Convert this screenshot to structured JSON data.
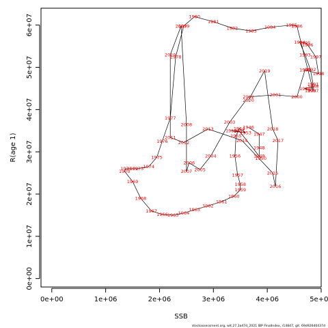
{
  "chart_data": {
    "type": "scatter",
    "connected": true,
    "xlabel": "SSB",
    "ylabel": "R(age 1)",
    "xlim": [
      -200000,
      5000000
    ],
    "ylim": [
      -2000000,
      64000000
    ],
    "x_ticks": [
      0,
      1000000,
      2000000,
      3000000,
      4000000,
      5000000
    ],
    "x_tick_labels": [
      "0e+00",
      "1e+06",
      "2e+06",
      "3e+06",
      "4e+06",
      "5e+06"
    ],
    "y_ticks": [
      0,
      10000000,
      20000000,
      30000000,
      40000000,
      50000000,
      60000000
    ],
    "y_tick_labels": [
      "0e+00",
      "1e+07",
      "2e+07",
      "3e+07",
      "4e+07",
      "5e+07",
      "6e+07"
    ],
    "label_color": "#ff0000",
    "line_color": "#000000",
    "grid": false,
    "points": [
      {
        "year": "1946",
        "x": 3650000,
        "y": 35800000
      },
      {
        "year": "1947",
        "x": 3850000,
        "y": 34200000
      },
      {
        "year": "1948",
        "x": 3850000,
        "y": 31000000
      },
      {
        "year": "1949",
        "x": 3850000,
        "y": 29000000
      },
      {
        "year": "1950",
        "x": 3880000,
        "y": 28500000
      },
      {
        "year": "1951",
        "x": 3480000,
        "y": 34900000
      },
      {
        "year": "1952",
        "x": 3330000,
        "y": 35000000
      },
      {
        "year": "1953",
        "x": 3600000,
        "y": 34500000
      },
      {
        "year": "1954",
        "x": 3480000,
        "y": 35500000
      },
      {
        "year": "1955",
        "x": 3420000,
        "y": 33800000
      },
      {
        "year": "1956",
        "x": 3400000,
        "y": 29000000
      },
      {
        "year": "1957",
        "x": 3450000,
        "y": 24500000
      },
      {
        "year": "1958",
        "x": 3500000,
        "y": 22300000
      },
      {
        "year": "1959",
        "x": 3500000,
        "y": 21000000
      },
      {
        "year": "1960",
        "x": 3380000,
        "y": 19500000
      },
      {
        "year": "1961",
        "x": 3150000,
        "y": 18200000
      },
      {
        "year": "1962",
        "x": 2900000,
        "y": 17200000
      },
      {
        "year": "1963",
        "x": 2650000,
        "y": 16300000
      },
      {
        "year": "1964",
        "x": 2450000,
        "y": 15500000
      },
      {
        "year": "1965",
        "x": 2250000,
        "y": 15000000
      },
      {
        "year": "1966",
        "x": 2050000,
        "y": 15200000
      },
      {
        "year": "1967",
        "x": 1850000,
        "y": 16000000
      },
      {
        "year": "1968",
        "x": 1650000,
        "y": 19000000
      },
      {
        "year": "1969",
        "x": 1500000,
        "y": 23000000
      },
      {
        "year": "1970",
        "x": 1350000,
        "y": 25400000
      },
      {
        "year": "1971",
        "x": 1380000,
        "y": 26000000
      },
      {
        "year": "1972",
        "x": 1500000,
        "y": 26000000
      },
      {
        "year": "1973",
        "x": 1600000,
        "y": 26000000
      },
      {
        "year": "1974",
        "x": 1800000,
        "y": 26500000
      },
      {
        "year": "1975",
        "x": 1950000,
        "y": 28700000
      },
      {
        "year": "1976",
        "x": 2050000,
        "y": 32500000
      },
      {
        "year": "1977",
        "x": 2200000,
        "y": 38000000
      },
      {
        "year": "1978",
        "x": 2300000,
        "y": 52500000
      },
      {
        "year": "1979",
        "x": 2450000,
        "y": 59800000
      },
      {
        "year": "1980",
        "x": 2650000,
        "y": 62000000
      },
      {
        "year": "1981",
        "x": 3000000,
        "y": 60800000
      },
      {
        "year": "1982",
        "x": 3350000,
        "y": 59300000
      },
      {
        "year": "1983",
        "x": 3700000,
        "y": 58600000
      },
      {
        "year": "1984",
        "x": 4050000,
        "y": 59500000
      },
      {
        "year": "1985",
        "x": 4450000,
        "y": 60000000
      },
      {
        "year": "1986",
        "x": 4550000,
        "y": 59800000
      },
      {
        "year": "1987",
        "x": 4850000,
        "y": 44500000
      },
      {
        "year": "1988",
        "x": 4850000,
        "y": 45500000
      },
      {
        "year": "1989",
        "x": 4700000,
        "y": 45000000
      },
      {
        "year": "1990",
        "x": 4800000,
        "y": 44500000
      },
      {
        "year": "1991",
        "x": 4850000,
        "y": 46000000
      },
      {
        "year": "1992",
        "x": 4800000,
        "y": 49500000
      },
      {
        "year": "1993",
        "x": 4700000,
        "y": 53000000
      },
      {
        "year": "1994",
        "x": 4600000,
        "y": 56000000
      },
      {
        "year": "1995",
        "x": 4700000,
        "y": 55800000
      },
      {
        "year": "1996",
        "x": 4750000,
        "y": 55300000
      },
      {
        "year": "1997",
        "x": 4900000,
        "y": 52500000
      },
      {
        "year": "1998",
        "x": 4950000,
        "y": 48500000
      },
      {
        "year": "1999",
        "x": 4700000,
        "y": 49400000
      },
      {
        "year": "2000",
        "x": 4550000,
        "y": 43000000
      },
      {
        "year": "2001",
        "x": 4150000,
        "y": 43500000
      },
      {
        "year": "2002",
        "x": 3650000,
        "y": 43000000
      },
      {
        "year": "2003",
        "x": 3300000,
        "y": 37000000
      },
      {
        "year": "2004",
        "x": 2950000,
        "y": 29000000
      },
      {
        "year": "2005",
        "x": 2750000,
        "y": 25800000
      },
      {
        "year": "2006",
        "x": 2550000,
        "y": 27400000
      },
      {
        "year": "2007",
        "x": 2500000,
        "y": 25400000
      },
      {
        "year": "2008",
        "x": 2500000,
        "y": 36500000
      },
      {
        "year": "2009",
        "x": 2400000,
        "y": 59800000
      },
      {
        "year": "2010",
        "x": 2200000,
        "y": 53000000
      },
      {
        "year": "2011",
        "x": 2200000,
        "y": 33400000
      },
      {
        "year": "2012",
        "x": 2450000,
        "y": 32200000
      },
      {
        "year": "2013",
        "x": 2900000,
        "y": 35400000
      },
      {
        "year": "2014",
        "x": 3530000,
        "y": 32700000
      },
      {
        "year": "2015",
        "x": 4100000,
        "y": 25000000
      },
      {
        "year": "2016",
        "x": 4150000,
        "y": 21800000
      },
      {
        "year": "2017",
        "x": 4200000,
        "y": 32700000
      },
      {
        "year": "2018",
        "x": 4100000,
        "y": 35400000
      },
      {
        "year": "2019",
        "x": 3950000,
        "y": 49200000
      },
      {
        "year": "2020",
        "x": 3650000,
        "y": 42200000
      }
    ]
  },
  "footer": "stockassessment.org, wit.27.3a47d_2021 IBP FinalIndex, r14847, git: 69d926d0437d"
}
